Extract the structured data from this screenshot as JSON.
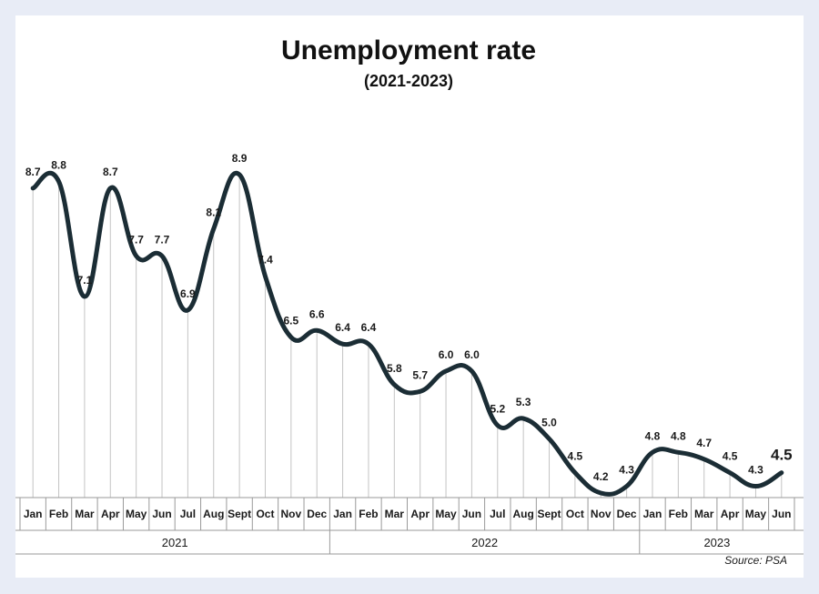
{
  "chart_data": {
    "type": "line",
    "title": "Unemployment rate",
    "subtitle": "(2021-2023)",
    "source": "Source: PSA",
    "x": [
      "Jan",
      "Feb",
      "Mar",
      "Apr",
      "May",
      "Jun",
      "Jul",
      "Aug",
      "Sept",
      "Oct",
      "Nov",
      "Dec",
      "Jan",
      "Feb",
      "Mar",
      "Apr",
      "May",
      "Jun",
      "Jul",
      "Aug",
      "Sept",
      "Oct",
      "Nov",
      "Dec",
      "Jan",
      "Feb",
      "Mar",
      "Apr",
      "May",
      "Jun"
    ],
    "years": [
      {
        "label": "2021",
        "count": 12
      },
      {
        "label": "2022",
        "count": 12
      },
      {
        "label": "2023",
        "count": 6
      }
    ],
    "series": [
      {
        "values": [
          8.7,
          8.8,
          7.1,
          8.7,
          7.7,
          7.7,
          6.9,
          8.1,
          8.9,
          7.4,
          6.5,
          6.6,
          6.4,
          6.4,
          5.8,
          5.7,
          6.0,
          6.0,
          5.2,
          5.3,
          5.0,
          4.5,
          4.2,
          4.3,
          4.8,
          4.8,
          4.7,
          4.5,
          4.3,
          4.5
        ],
        "labels": [
          "8.7",
          "8.8",
          "7.1",
          "8.7",
          "7.7",
          "7.7",
          "6.9",
          "8.1",
          "8.9",
          "7.4",
          "6.5",
          "6.6",
          "6.4",
          "6.4",
          "5.8",
          "5.7",
          "6.0",
          "6.0",
          "5.2",
          "5.3",
          "5.0",
          "4.5",
          "4.2",
          "4.3",
          "4.8",
          "4.8",
          "4.7",
          "4.5",
          "4.3",
          "4.5"
        ]
      }
    ],
    "ylim": [
      3.8,
      9.2
    ],
    "grid": false,
    "colors": {
      "line": "#1b2d35",
      "grid": "#c4c4c4",
      "axis": "#9a9a9a",
      "background": "#e8ecf6"
    }
  }
}
